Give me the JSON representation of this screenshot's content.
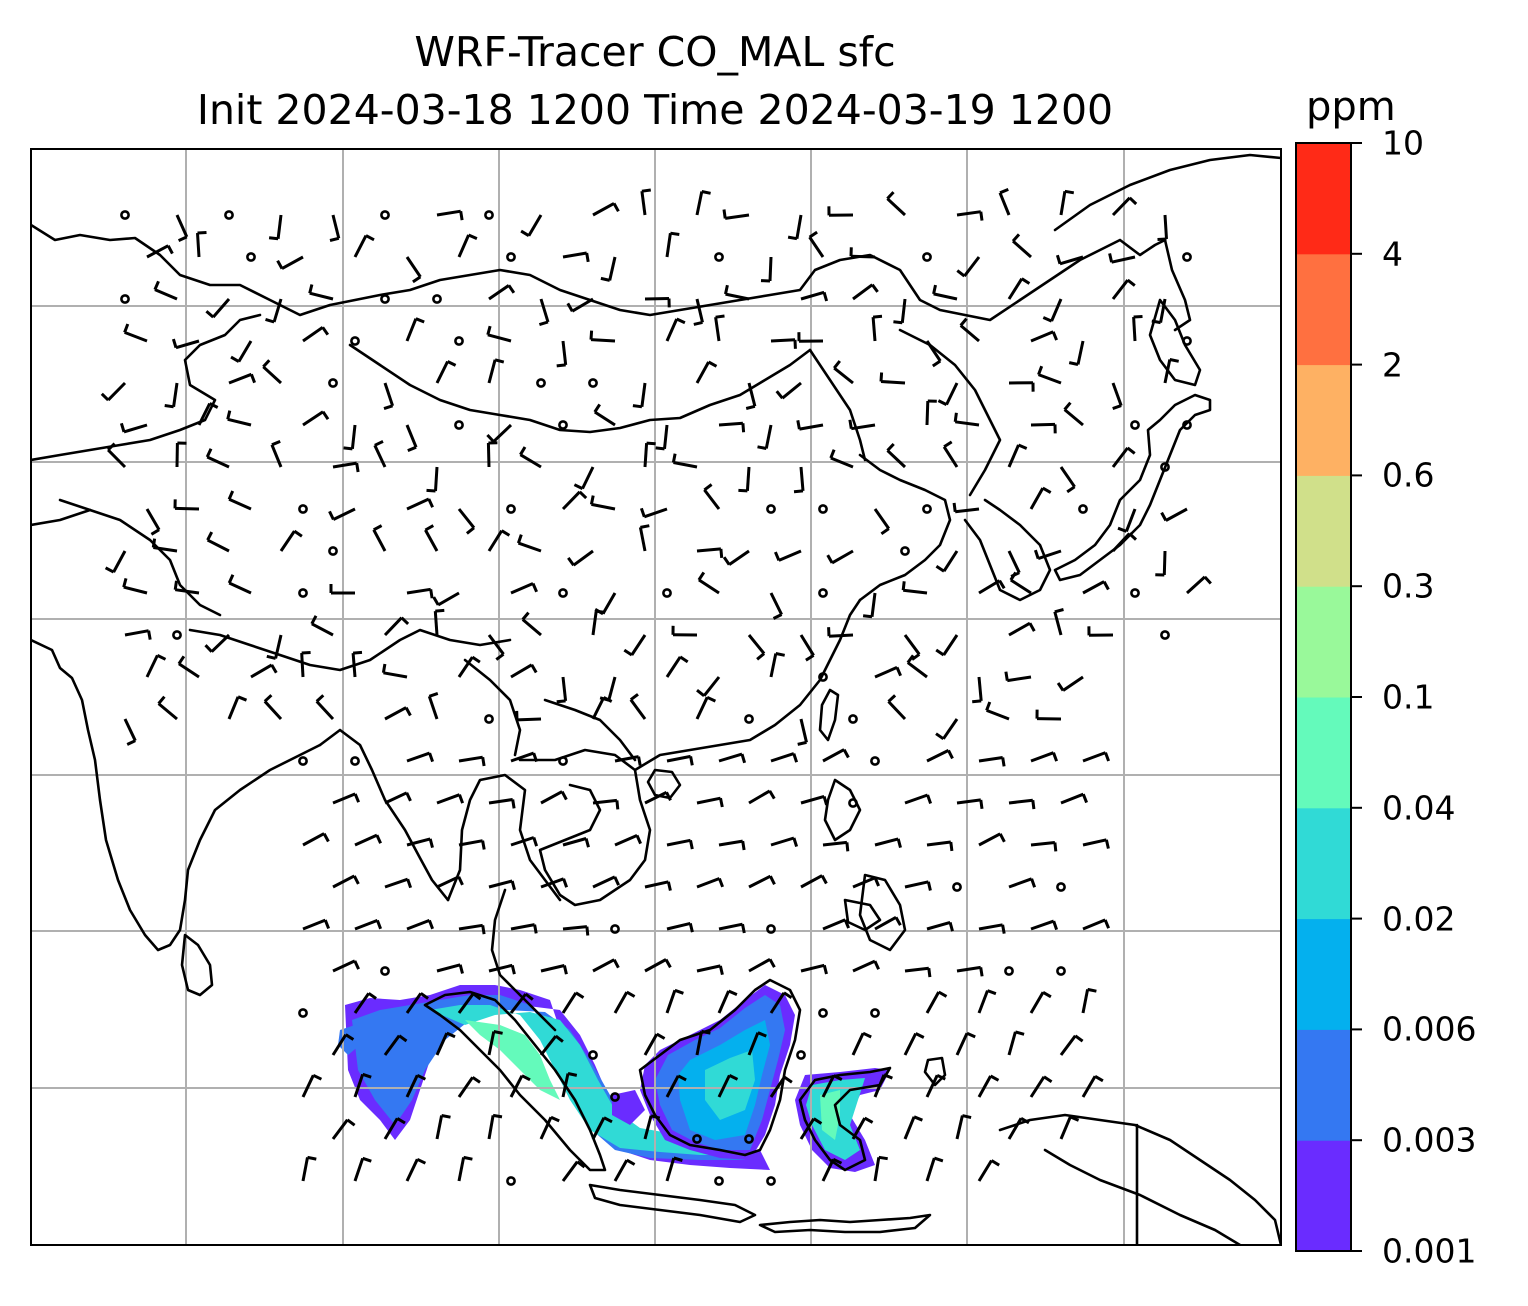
{
  "title": {
    "line1": "WRF-Tracer CO_MAL sfc",
    "line2": "Init 2024-03-18 1200 Time 2024-03-19 1200"
  },
  "colorbar": {
    "unit": "ppm",
    "levels": [
      "0.001",
      "0.003",
      "0.006",
      "0.02",
      "0.04",
      "0.1",
      "0.3",
      "0.6",
      "2",
      "4",
      "10"
    ],
    "colors": [
      "#6a2cff",
      "#3478f2",
      "#04b0ee",
      "#30dad6",
      "#64fabb",
      "#99f99a",
      "#d0e08a",
      "#feb163",
      "#ff7040",
      "#ff2a17"
    ]
  },
  "map": {
    "gridlines": "on",
    "gridline_color": "#b0b0b0",
    "coastline_color": "#000000",
    "wind_barbs": "shown",
    "tracer_field": "CO_MAL surface concentration plume over Sumatra and Borneo"
  }
}
